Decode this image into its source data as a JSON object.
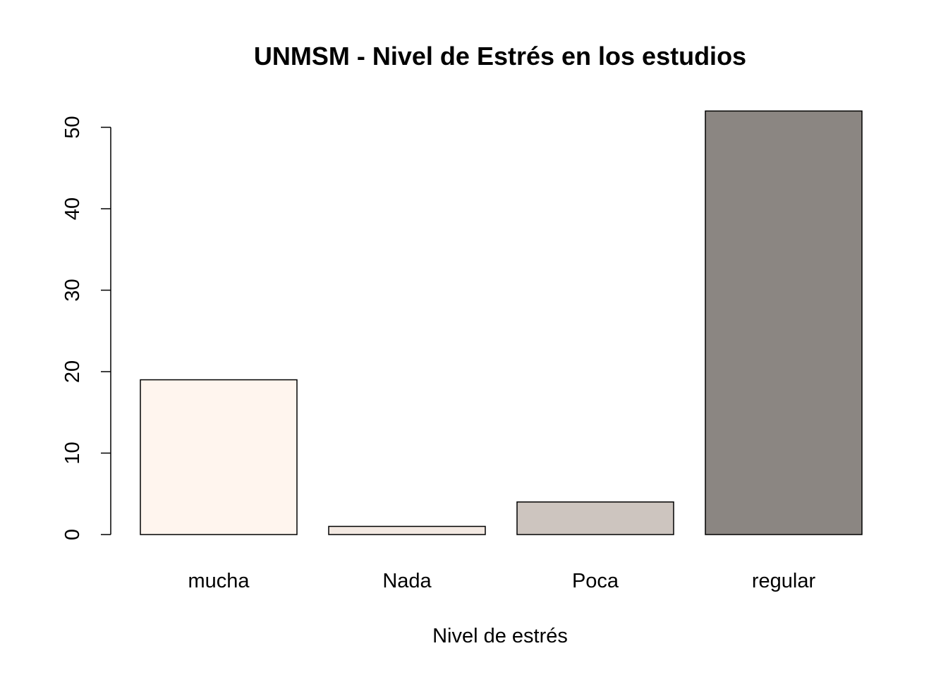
{
  "chart_data": {
    "type": "bar",
    "title": "UNMSM - Nivel de Estrés en los estudios",
    "xlabel": "Nivel de estrés",
    "ylabel": "",
    "categories": [
      "mucha",
      "Nada",
      "Poca",
      "regular"
    ],
    "values": [
      19,
      1,
      4,
      52
    ],
    "colors": [
      "#FFF5EE",
      "#F3E9E2",
      "#CDC5BF",
      "#8B8682"
    ],
    "ylim": [
      0,
      52
    ],
    "yticks": [
      0,
      10,
      20,
      30,
      40,
      50
    ],
    "ytick_labels": [
      "0",
      "10",
      "20",
      "30",
      "40",
      "50"
    ],
    "grid": false,
    "legend": "none"
  }
}
